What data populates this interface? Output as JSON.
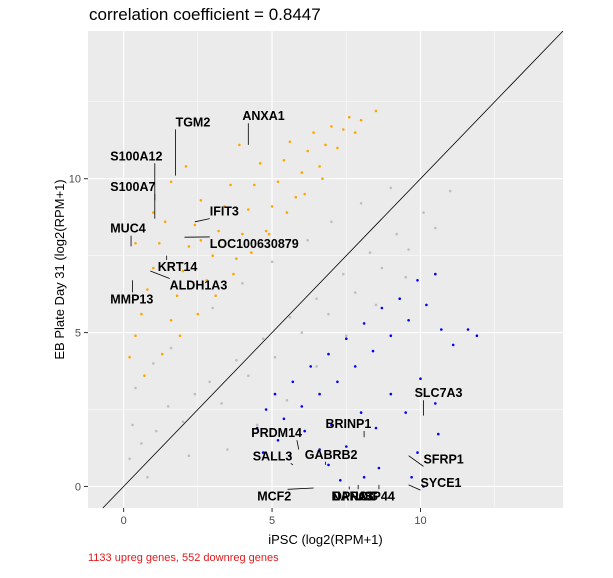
{
  "chart_data": {
    "type": "scatter",
    "title": "correlation coefficient = 0.8447",
    "xlabel": "iPSC (log2(RPM+1)",
    "ylabel": "EB Plate Day 31 (log2(RPM+1)",
    "caption": "1133 upreg genes, 552 downreg genes",
    "xlim": [
      -1.2,
      14.8
    ],
    "ylim": [
      -0.7,
      14.8
    ],
    "xticks": [
      0,
      5,
      10
    ],
    "yticks": [
      0,
      5,
      10
    ],
    "tick_labels_x": [
      "0",
      "5",
      "10"
    ],
    "tick_labels_y": [
      "0",
      "5",
      "10"
    ],
    "grid": true,
    "diagonal": "y = x",
    "panel_color": "#ebebeb",
    "colors": {
      "unchanged": "#bebebe",
      "upregulated": "#ffa500",
      "downregulated": "#0000ff"
    },
    "series": [
      {
        "group": "unchanged",
        "points": [
          [
            0.2,
            0.9
          ],
          [
            0.6,
            1.4
          ],
          [
            1.1,
            1.8
          ],
          [
            1.5,
            2.6
          ],
          [
            2.0,
            2.1
          ],
          [
            2.4,
            3.0
          ],
          [
            2.9,
            3.4
          ],
          [
            3.3,
            2.7
          ],
          [
            3.8,
            4.1
          ],
          [
            4.2,
            3.6
          ],
          [
            4.7,
            4.8
          ],
          [
            5.1,
            4.2
          ],
          [
            5.6,
            5.5
          ],
          [
            6.0,
            5.0
          ],
          [
            6.5,
            6.1
          ],
          [
            6.9,
            5.6
          ],
          [
            7.4,
            6.9
          ],
          [
            7.8,
            6.3
          ],
          [
            8.3,
            7.6
          ],
          [
            8.7,
            7.1
          ],
          [
            9.2,
            8.2
          ],
          [
            9.6,
            7.7
          ],
          [
            10.1,
            8.9
          ],
          [
            10.5,
            8.4
          ],
          [
            11.0,
            9.6
          ],
          [
            0.4,
            3.2
          ],
          [
            1.0,
            4.0
          ],
          [
            1.6,
            4.5
          ],
          [
            3.0,
            5.8
          ],
          [
            4.0,
            6.6
          ],
          [
            5.0,
            7.3
          ],
          [
            6.2,
            8.0
          ],
          [
            7.0,
            8.6
          ],
          [
            8.0,
            9.2
          ],
          [
            9.0,
            9.7
          ],
          [
            3.5,
            1.2
          ],
          [
            4.5,
            2.0
          ],
          [
            5.5,
            2.8
          ],
          [
            6.5,
            3.9
          ],
          [
            7.5,
            4.9
          ],
          [
            8.5,
            5.9
          ],
          [
            9.5,
            6.8
          ],
          [
            0.8,
            0.3
          ],
          [
            2.2,
            1.0
          ],
          [
            0.3,
            2.0
          ]
        ]
      },
      {
        "group": "upregulated",
        "points": [
          [
            0.2,
            4.2
          ],
          [
            0.4,
            4.9
          ],
          [
            0.6,
            5.6
          ],
          [
            0.8,
            6.4
          ],
          [
            1.0,
            7.1
          ],
          [
            1.2,
            7.9
          ],
          [
            1.4,
            8.6
          ],
          [
            1.6,
            5.4
          ],
          [
            1.8,
            6.2
          ],
          [
            2.0,
            7.0
          ],
          [
            2.2,
            7.8
          ],
          [
            2.4,
            8.5
          ],
          [
            2.6,
            9.3
          ],
          [
            2.8,
            6.7
          ],
          [
            3.0,
            7.5
          ],
          [
            3.2,
            8.3
          ],
          [
            3.4,
            9.1
          ],
          [
            3.6,
            9.8
          ],
          [
            3.8,
            7.4
          ],
          [
            4.0,
            8.2
          ],
          [
            4.2,
            9.0
          ],
          [
            4.4,
            9.8
          ],
          [
            4.6,
            10.5
          ],
          [
            4.8,
            8.3
          ],
          [
            5.0,
            9.1
          ],
          [
            5.2,
            9.9
          ],
          [
            5.4,
            10.6
          ],
          [
            5.6,
            11.2
          ],
          [
            5.8,
            9.4
          ],
          [
            6.0,
            10.2
          ],
          [
            6.2,
            10.9
          ],
          [
            6.4,
            11.5
          ],
          [
            6.6,
            10.4
          ],
          [
            6.8,
            11.1
          ],
          [
            7.0,
            11.7
          ],
          [
            7.2,
            11.0
          ],
          [
            7.4,
            11.6
          ],
          [
            7.6,
            12.0
          ],
          [
            7.8,
            11.5
          ],
          [
            8.0,
            11.9
          ],
          [
            8.5,
            12.2
          ],
          [
            3.9,
            11.1
          ],
          [
            0.4,
            7.9
          ],
          [
            1.0,
            8.9
          ],
          [
            1.6,
            9.9
          ],
          [
            2.1,
            10.4
          ],
          [
            2.6,
            8.0
          ],
          [
            0.7,
            3.6
          ],
          [
            1.3,
            4.3
          ],
          [
            1.9,
            4.9
          ],
          [
            2.5,
            5.6
          ],
          [
            3.1,
            6.2
          ],
          [
            3.7,
            6.9
          ],
          [
            4.3,
            7.6
          ],
          [
            4.9,
            8.2
          ],
          [
            5.5,
            8.9
          ],
          [
            6.1,
            9.5
          ],
          [
            6.7,
            10.0
          ]
        ]
      },
      {
        "group": "downregulated",
        "points": [
          [
            4.5,
            1.9
          ],
          [
            4.8,
            2.5
          ],
          [
            5.1,
            3.0
          ],
          [
            5.4,
            2.2
          ],
          [
            5.7,
            3.4
          ],
          [
            6.0,
            2.6
          ],
          [
            6.3,
            3.9
          ],
          [
            6.6,
            3.0
          ],
          [
            6.9,
            4.3
          ],
          [
            7.2,
            3.4
          ],
          [
            7.5,
            4.8
          ],
          [
            7.8,
            3.9
          ],
          [
            8.1,
            5.3
          ],
          [
            8.4,
            4.4
          ],
          [
            8.7,
            5.8
          ],
          [
            9.0,
            4.9
          ],
          [
            9.3,
            6.1
          ],
          [
            9.6,
            5.4
          ],
          [
            9.9,
            6.7
          ],
          [
            10.2,
            5.9
          ],
          [
            10.5,
            6.9
          ],
          [
            10.7,
            5.1
          ],
          [
            4.7,
            1.1
          ],
          [
            5.2,
            1.5
          ],
          [
            5.6,
            1.0
          ],
          [
            6.1,
            1.8
          ],
          [
            6.6,
            1.2
          ],
          [
            7.0,
            2.0
          ],
          [
            7.5,
            1.3
          ],
          [
            8.0,
            2.4
          ],
          [
            8.5,
            1.9
          ],
          [
            9.0,
            3.0
          ],
          [
            9.5,
            2.4
          ],
          [
            10.0,
            3.5
          ],
          [
            10.5,
            2.7
          ],
          [
            11.1,
            4.6
          ],
          [
            11.6,
            5.1
          ],
          [
            11.9,
            4.9
          ],
          [
            7.3,
            0.2
          ],
          [
            8.6,
            0.6
          ],
          [
            9.7,
            0.3
          ],
          [
            9.9,
            1.1
          ],
          [
            10.1,
            0.0
          ],
          [
            10.6,
            1.7
          ],
          [
            6.9,
            0.7
          ],
          [
            8.1,
            0.3
          ]
        ]
      }
    ],
    "annotations": [
      {
        "label": "TGM2",
        "x": 1.75,
        "y": 10.1,
        "tx": 1.75,
        "ty": 11.7
      },
      {
        "label": "ANXA1",
        "x": 4.2,
        "y": 11.1,
        "tx": 4.0,
        "ty": 11.9
      },
      {
        "label": "S100A12",
        "x": 1.05,
        "y": 9.3,
        "tx": -0.45,
        "ty": 10.6
      },
      {
        "label": "S100A7",
        "x": 1.05,
        "y": 8.7,
        "tx": -0.45,
        "ty": 9.6
      },
      {
        "label": "IFIT3",
        "x": 2.4,
        "y": 8.6,
        "tx": 2.9,
        "ty": 8.8
      },
      {
        "label": "MUC4",
        "x": 0.25,
        "y": 7.8,
        "tx": -0.45,
        "ty": 8.25
      },
      {
        "label": "LOC100630879",
        "x": 2.05,
        "y": 8.1,
        "tx": 2.9,
        "ty": 7.75
      },
      {
        "label": "KRT14",
        "x": 1.45,
        "y": 7.5,
        "tx": 1.15,
        "ty": 7.0
      },
      {
        "label": "ALDH1A3",
        "x": 0.9,
        "y": 7.0,
        "tx": 1.55,
        "ty": 6.4
      },
      {
        "label": "MMP13",
        "x": 0.3,
        "y": 6.7,
        "tx": -0.45,
        "ty": 5.95
      },
      {
        "label": "SLC7A3",
        "x": 10.1,
        "y": 2.3,
        "tx": 9.8,
        "ty": 2.9
      },
      {
        "label": "BRINP1",
        "x": 8.1,
        "y": 1.6,
        "tx": 6.8,
        "ty": 1.9
      },
      {
        "label": "PRDM14",
        "x": 5.9,
        "y": 1.2,
        "tx": 4.3,
        "ty": 1.6
      },
      {
        "label": "SFRP1",
        "x": 9.6,
        "y": 1.0,
        "tx": 10.1,
        "ty": 0.75
      },
      {
        "label": "SALL3",
        "x": 5.7,
        "y": 0.7,
        "tx": 4.35,
        "ty": 0.85
      },
      {
        "label": "GABRB2",
        "x": 6.8,
        "y": 0.7,
        "tx": 6.1,
        "ty": 0.9
      },
      {
        "label": "SYCE1",
        "x": 9.6,
        "y": 0.05,
        "tx": 10.0,
        "ty": -0.02
      },
      {
        "label": "MCF2",
        "x": 6.4,
        "y": -0.05,
        "tx": 4.5,
        "ty": -0.45
      },
      {
        "label": "NANOG",
        "x": 7.6,
        "y": 0.0,
        "tx": 7.0,
        "ty": -0.45
      },
      {
        "label": "DPPA3",
        "x": 7.9,
        "y": 0.05,
        "tx": 7.05,
        "ty": -0.45
      },
      {
        "label": "USP44",
        "x": 8.6,
        "y": 0.05,
        "tx": 7.8,
        "ty": -0.45
      }
    ]
  }
}
